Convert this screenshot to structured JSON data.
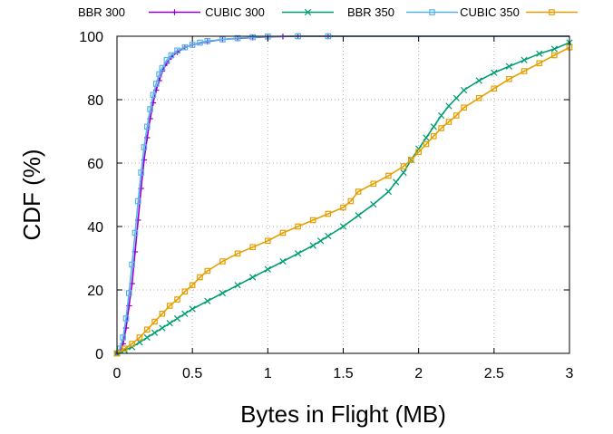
{
  "chart_data": {
    "type": "line",
    "xlabel": "Bytes in Flight (MB)",
    "ylabel": "CDF (%)",
    "xlim": [
      0,
      3
    ],
    "ylim": [
      0,
      100
    ],
    "xticks": [
      0,
      0.5,
      1,
      1.5,
      2,
      2.5,
      3
    ],
    "xtick_labels": [
      "0",
      "0.5",
      "1",
      "1.5",
      "2",
      "2.5",
      "3"
    ],
    "yticks": [
      0,
      20,
      40,
      60,
      80,
      100
    ],
    "ytick_labels": [
      "0",
      "20",
      "40",
      "60",
      "80",
      "100"
    ],
    "grid": "dotted",
    "legend": "top, outside plot, single row",
    "series": [
      {
        "name": "BBR 300",
        "color": "#9400d3",
        "marker": "plus",
        "x": [
          0,
          0.02,
          0.04,
          0.06,
          0.08,
          0.1,
          0.12,
          0.14,
          0.16,
          0.18,
          0.2,
          0.22,
          0.24,
          0.26,
          0.28,
          0.3,
          0.33,
          0.36,
          0.4,
          0.45,
          0.5,
          0.6,
          0.7,
          0.8,
          0.9,
          1.0,
          1.1,
          1.2,
          1.4,
          3.0
        ],
        "y": [
          0,
          1,
          3,
          8,
          15,
          22,
          32,
          42,
          52,
          61,
          68,
          74,
          79,
          83,
          86,
          89,
          91.5,
          93.5,
          95,
          96.5,
          97.3,
          98.3,
          99,
          99.3,
          99.6,
          99.8,
          99.9,
          100,
          100,
          100
        ]
      },
      {
        "name": "CUBIC 300",
        "color": "#009e73",
        "marker": "cross",
        "x": [
          0,
          0.05,
          0.1,
          0.15,
          0.2,
          0.25,
          0.3,
          0.35,
          0.4,
          0.45,
          0.5,
          0.6,
          0.7,
          0.8,
          0.9,
          1.0,
          1.1,
          1.2,
          1.3,
          1.35,
          1.4,
          1.5,
          1.6,
          1.7,
          1.8,
          1.85,
          1.9,
          1.95,
          2.0,
          2.05,
          2.1,
          2.15,
          2.2,
          2.25,
          2.3,
          2.4,
          2.5,
          2.6,
          2.7,
          2.8,
          2.9,
          3.0
        ],
        "y": [
          0,
          1,
          2,
          3.5,
          5,
          6.5,
          8,
          9.5,
          11,
          12.5,
          14,
          16.5,
          19,
          21.5,
          24,
          26.5,
          29,
          31.5,
          34,
          35.5,
          37,
          40,
          43.5,
          47,
          51,
          54,
          57,
          61,
          64.5,
          68,
          71.5,
          75,
          78,
          80.5,
          83,
          86,
          88.5,
          90.5,
          92.5,
          94.5,
          96,
          98
        ]
      },
      {
        "name": "BBR 350",
        "color": "#56b4e9",
        "marker": "box",
        "x": [
          0,
          0.02,
          0.04,
          0.06,
          0.08,
          0.1,
          0.12,
          0.14,
          0.16,
          0.18,
          0.2,
          0.22,
          0.24,
          0.26,
          0.28,
          0.3,
          0.33,
          0.36,
          0.4,
          0.45,
          0.5,
          0.55,
          0.6,
          0.7,
          0.8,
          0.9,
          1.0,
          1.2,
          1.4,
          3.0
        ],
        "y": [
          0,
          1.5,
          5,
          11,
          19,
          28,
          38,
          48,
          57,
          65,
          71.5,
          77,
          81.5,
          85,
          88,
          90,
          92.5,
          94,
          95.5,
          96.5,
          97.3,
          98,
          98.5,
          99,
          99.4,
          99.7,
          99.9,
          100,
          100,
          100
        ]
      },
      {
        "name": "CUBIC 350",
        "color": "#e69f00",
        "marker": "box",
        "x": [
          0,
          0.05,
          0.1,
          0.15,
          0.2,
          0.25,
          0.3,
          0.35,
          0.4,
          0.45,
          0.5,
          0.55,
          0.6,
          0.7,
          0.8,
          0.9,
          1.0,
          1.1,
          1.2,
          1.3,
          1.4,
          1.5,
          1.55,
          1.6,
          1.7,
          1.8,
          1.9,
          1.95,
          2.0,
          2.05,
          2.1,
          2.15,
          2.2,
          2.25,
          2.3,
          2.4,
          2.5,
          2.6,
          2.7,
          2.8,
          2.9,
          3.0
        ],
        "y": [
          0,
          1.5,
          3,
          5,
          7.5,
          10,
          12.5,
          15,
          17,
          19.5,
          21.5,
          24,
          26,
          29,
          31.5,
          33.5,
          35.5,
          38,
          40,
          42,
          44,
          46,
          48,
          51,
          53.5,
          56,
          59,
          61,
          63.5,
          66,
          68.5,
          71,
          73,
          75,
          77.5,
          80.5,
          83.5,
          86.5,
          89,
          91.5,
          94,
          96.5
        ]
      }
    ]
  }
}
